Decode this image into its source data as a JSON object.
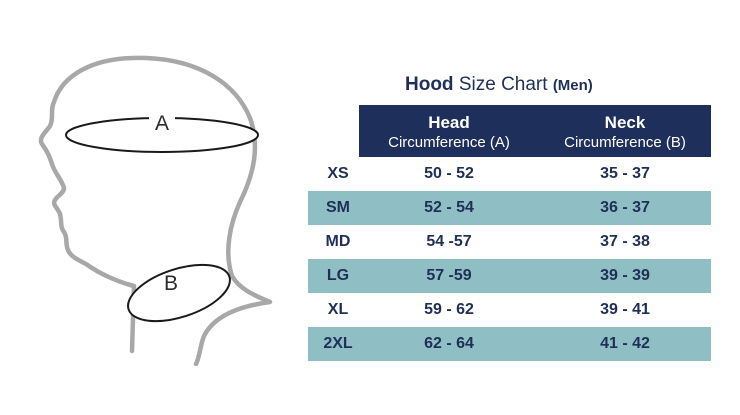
{
  "diagram": {
    "label_a": "A",
    "label_b": "B",
    "outline_color": "#a8a8a8",
    "ellipse_color": "#1a1a1a"
  },
  "title": {
    "bold": "Hood",
    "regular": " Size Chart ",
    "suffix": "(Men)"
  },
  "table": {
    "header_color": "#1f2f5b",
    "stripe_color": "#8fbfc4",
    "columns": [
      {
        "name": "Head",
        "sub": "Circumference (A)"
      },
      {
        "name": "Neck",
        "sub": "Circumference (B)"
      }
    ],
    "rows": [
      {
        "size": "XS",
        "head": "50 - 52",
        "neck": "35 - 37",
        "shaded": false
      },
      {
        "size": "SM",
        "head": "52 - 54",
        "neck": "36 - 37",
        "shaded": true
      },
      {
        "size": "MD",
        "head": "54 -57",
        "neck": "37 - 38",
        "shaded": false
      },
      {
        "size": "LG",
        "head": "57 -59",
        "neck": "39 - 39",
        "shaded": true
      },
      {
        "size": "XL",
        "head": "59 - 62",
        "neck": "39 - 41",
        "shaded": false
      },
      {
        "size": "2XL",
        "head": "62 - 64",
        "neck": "41 - 42",
        "shaded": true
      }
    ]
  }
}
